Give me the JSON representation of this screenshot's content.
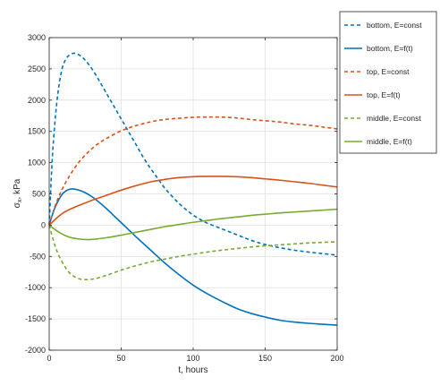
{
  "chart_data": {
    "type": "line",
    "xlabel": "t, hours",
    "ylabel_main": "σ",
    "ylabel_sub": "x",
    "ylabel_unit": ", kPa",
    "xlim": [
      0,
      200
    ],
    "ylim": [
      -2000,
      3000
    ],
    "x_ticks": [
      0,
      50,
      100,
      150,
      200
    ],
    "y_ticks": [
      -2000,
      -1500,
      -1000,
      -500,
      0,
      500,
      1000,
      1500,
      2000,
      2500,
      3000
    ],
    "grid": true,
    "legend_position": "outside-top-right",
    "series": [
      {
        "name": "bottom, E=const",
        "color": "#0072BD",
        "dash": true,
        "points": [
          [
            0,
            0
          ],
          [
            2,
            1000
          ],
          [
            4,
            1650
          ],
          [
            6,
            2100
          ],
          [
            8,
            2400
          ],
          [
            10,
            2580
          ],
          [
            13,
            2700
          ],
          [
            17,
            2750
          ],
          [
            21,
            2720
          ],
          [
            25,
            2640
          ],
          [
            30,
            2490
          ],
          [
            35,
            2300
          ],
          [
            40,
            2100
          ],
          [
            45,
            1900
          ],
          [
            50,
            1700
          ],
          [
            55,
            1500
          ],
          [
            60,
            1300
          ],
          [
            65,
            1100
          ],
          [
            70,
            920
          ],
          [
            75,
            760
          ],
          [
            80,
            600
          ],
          [
            85,
            470
          ],
          [
            90,
            350
          ],
          [
            95,
            250
          ],
          [
            100,
            160
          ],
          [
            105,
            90
          ],
          [
            110,
            30
          ],
          [
            120,
            -60
          ],
          [
            130,
            -150
          ],
          [
            140,
            -240
          ],
          [
            150,
            -310
          ],
          [
            160,
            -360
          ],
          [
            170,
            -400
          ],
          [
            180,
            -430
          ],
          [
            190,
            -455
          ],
          [
            200,
            -480
          ]
        ]
      },
      {
        "name": "bottom, E=f(t)",
        "color": "#0072BD",
        "dash": false,
        "points": [
          [
            0,
            0
          ],
          [
            2,
            150
          ],
          [
            4,
            280
          ],
          [
            6,
            380
          ],
          [
            8,
            460
          ],
          [
            10,
            520
          ],
          [
            13,
            565
          ],
          [
            16,
            580
          ],
          [
            20,
            565
          ],
          [
            25,
            520
          ],
          [
            30,
            450
          ],
          [
            35,
            360
          ],
          [
            40,
            260
          ],
          [
            45,
            150
          ],
          [
            50,
            40
          ],
          [
            55,
            -70
          ],
          [
            60,
            -180
          ],
          [
            70,
            -390
          ],
          [
            80,
            -600
          ],
          [
            90,
            -790
          ],
          [
            100,
            -960
          ],
          [
            110,
            -1100
          ],
          [
            120,
            -1220
          ],
          [
            130,
            -1330
          ],
          [
            140,
            -1410
          ],
          [
            150,
            -1470
          ],
          [
            160,
            -1520
          ],
          [
            170,
            -1550
          ],
          [
            180,
            -1570
          ],
          [
            190,
            -1585
          ],
          [
            200,
            -1600
          ]
        ]
      },
      {
        "name": "top, E=const",
        "color": "#D95319",
        "dash": true,
        "points": [
          [
            0,
            0
          ],
          [
            3,
            230
          ],
          [
            6,
            420
          ],
          [
            10,
            620
          ],
          [
            15,
            820
          ],
          [
            20,
            990
          ],
          [
            25,
            1120
          ],
          [
            30,
            1230
          ],
          [
            35,
            1320
          ],
          [
            40,
            1390
          ],
          [
            50,
            1510
          ],
          [
            60,
            1590
          ],
          [
            70,
            1650
          ],
          [
            80,
            1690
          ],
          [
            90,
            1710
          ],
          [
            100,
            1725
          ],
          [
            110,
            1730
          ],
          [
            120,
            1728
          ],
          [
            130,
            1715
          ],
          [
            140,
            1690
          ],
          [
            150,
            1670
          ],
          [
            160,
            1650
          ],
          [
            170,
            1620
          ],
          [
            180,
            1600
          ],
          [
            190,
            1570
          ],
          [
            200,
            1540
          ]
        ]
      },
      {
        "name": "top, E=f(t)",
        "color": "#D95319",
        "dash": false,
        "points": [
          [
            0,
            0
          ],
          [
            5,
            110
          ],
          [
            10,
            200
          ],
          [
            15,
            260
          ],
          [
            20,
            310
          ],
          [
            25,
            355
          ],
          [
            30,
            400
          ],
          [
            40,
            480
          ],
          [
            50,
            560
          ],
          [
            60,
            630
          ],
          [
            70,
            690
          ],
          [
            80,
            730
          ],
          [
            90,
            760
          ],
          [
            100,
            775
          ],
          [
            110,
            780
          ],
          [
            120,
            780
          ],
          [
            130,
            775
          ],
          [
            140,
            760
          ],
          [
            150,
            740
          ],
          [
            160,
            720
          ],
          [
            170,
            695
          ],
          [
            180,
            670
          ],
          [
            190,
            640
          ],
          [
            200,
            610
          ]
        ]
      },
      {
        "name": "middle, E=const",
        "color": "#77AC30",
        "dash": true,
        "points": [
          [
            0,
            0
          ],
          [
            3,
            -250
          ],
          [
            6,
            -450
          ],
          [
            10,
            -630
          ],
          [
            14,
            -760
          ],
          [
            18,
            -830
          ],
          [
            22,
            -865
          ],
          [
            27,
            -870
          ],
          [
            32,
            -855
          ],
          [
            40,
            -800
          ],
          [
            50,
            -720
          ],
          [
            60,
            -650
          ],
          [
            70,
            -590
          ],
          [
            80,
            -545
          ],
          [
            90,
            -500
          ],
          [
            100,
            -465
          ],
          [
            110,
            -430
          ],
          [
            120,
            -400
          ],
          [
            130,
            -375
          ],
          [
            140,
            -350
          ],
          [
            150,
            -330
          ],
          [
            160,
            -315
          ],
          [
            170,
            -300
          ],
          [
            180,
            -285
          ],
          [
            190,
            -275
          ],
          [
            200,
            -265
          ]
        ]
      },
      {
        "name": "middle, E=f(t)",
        "color": "#77AC30",
        "dash": false,
        "points": [
          [
            0,
            0
          ],
          [
            4,
            -70
          ],
          [
            8,
            -130
          ],
          [
            12,
            -175
          ],
          [
            16,
            -205
          ],
          [
            20,
            -220
          ],
          [
            25,
            -230
          ],
          [
            30,
            -228
          ],
          [
            40,
            -200
          ],
          [
            50,
            -160
          ],
          [
            60,
            -115
          ],
          [
            70,
            -70
          ],
          [
            80,
            -25
          ],
          [
            90,
            10
          ],
          [
            100,
            45
          ],
          [
            110,
            75
          ],
          [
            120,
            105
          ],
          [
            130,
            130
          ],
          [
            140,
            155
          ],
          [
            150,
            175
          ],
          [
            160,
            195
          ],
          [
            170,
            210
          ],
          [
            180,
            225
          ],
          [
            190,
            240
          ],
          [
            200,
            255
          ]
        ]
      }
    ]
  }
}
